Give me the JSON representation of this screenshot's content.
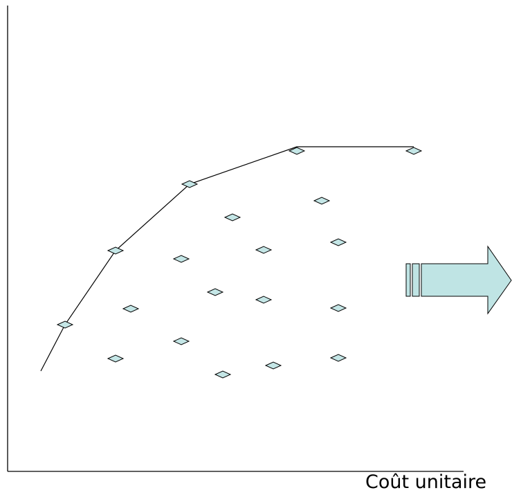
{
  "x_axis_label": "Coût unitaire",
  "colors": {
    "marker_fill": "#c4e6e6",
    "marker_stroke": "#000000",
    "arrow_fill": "#bfe4e4",
    "line": "#000000"
  },
  "icons": {
    "arrow": "right-arrow-icon"
  }
}
